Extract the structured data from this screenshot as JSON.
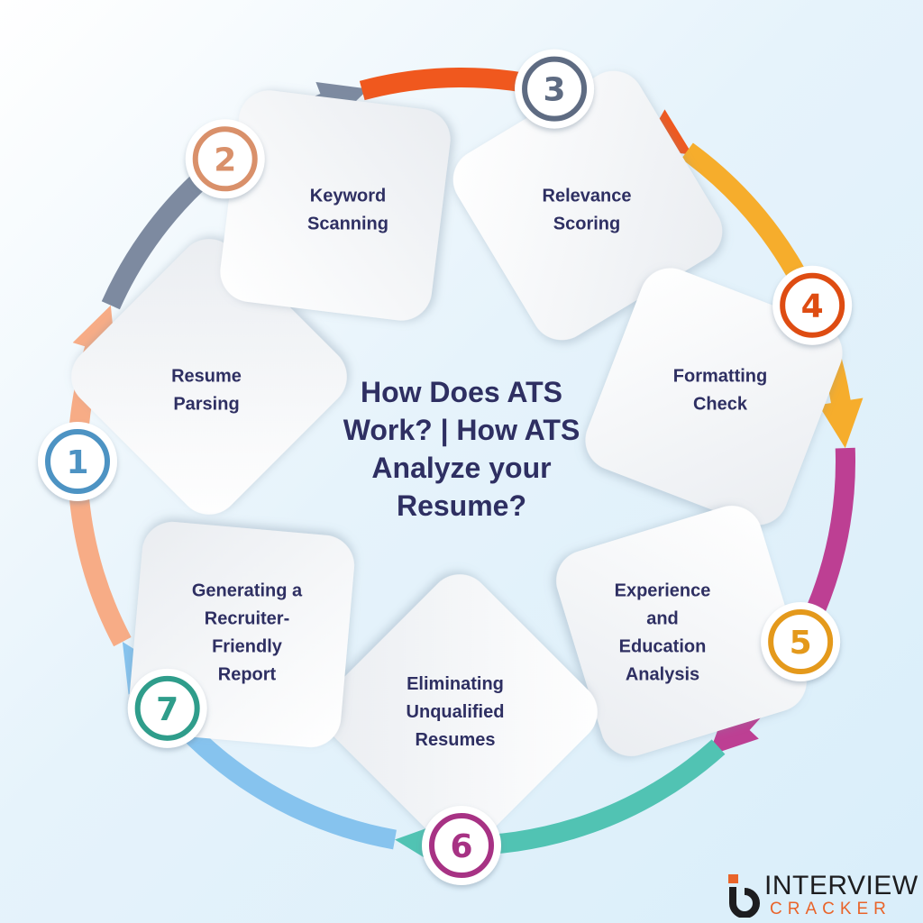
{
  "title": "How Does ATS Work? | How ATS Analyze your Resume?",
  "steps": [
    {
      "number": "1",
      "lines": [
        "Resume",
        "Parsing"
      ],
      "color": "#86c3ee",
      "badge_color": "#4d93c3"
    },
    {
      "number": "2",
      "lines": [
        "Keyword",
        "Scanning"
      ],
      "color": "#f7ac86",
      "badge_color": "#d9906a"
    },
    {
      "number": "3",
      "lines": [
        "Relevance",
        "Scoring"
      ],
      "color": "#7d8aa0",
      "badge_color": "#5e6b82"
    },
    {
      "number": "4",
      "lines": [
        "Formatting",
        "Check"
      ],
      "color": "#f0581e",
      "badge_color": "#de4c12"
    },
    {
      "number": "5",
      "lines": [
        "Experience",
        "and",
        "Education",
        "Analysis"
      ],
      "color": "#f6ad2c",
      "badge_color": "#e4991b"
    },
    {
      "number": "6",
      "lines": [
        "Eliminating",
        "Unqualified",
        "Resumes"
      ],
      "color": "#bd3f93",
      "badge_color": "#a73284"
    },
    {
      "number": "7",
      "lines": [
        "Generating a",
        "Recruiter-",
        "Friendly",
        "Report"
      ],
      "color": "#51c3b3",
      "badge_color": "#2f9d8b"
    }
  ],
  "logo": {
    "word1": "INTERVIEW",
    "word2": "CRACKER",
    "dark": "#1d1d1f",
    "accent": "#e9642a"
  }
}
